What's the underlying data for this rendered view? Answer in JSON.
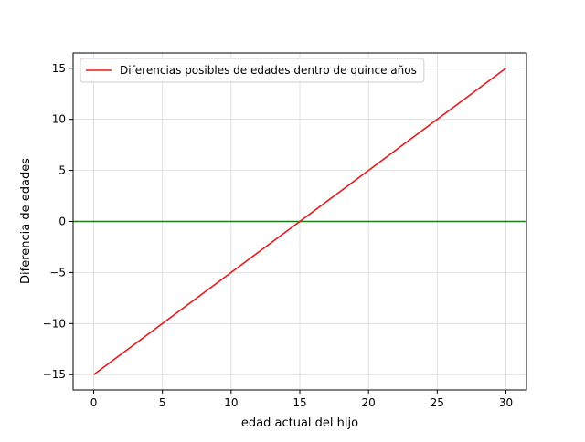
{
  "chart_data": {
    "type": "line",
    "xlabel": "edad actual del hijo",
    "ylabel": "Diferencia de edades",
    "xlim": [
      -1.5,
      31.5
    ],
    "ylim": [
      -16.5,
      16.5
    ],
    "xticks": [
      0,
      5,
      10,
      15,
      20,
      25,
      30
    ],
    "yticks": [
      -15,
      -10,
      -5,
      0,
      5,
      10,
      15
    ],
    "ytick_labels": [
      "−15",
      "−10",
      "−5",
      "0",
      "5",
      "10",
      "15"
    ],
    "grid": true,
    "legend_position": "upper-left",
    "series": [
      {
        "name": "Diferencias posibles de edades dentro de quince años",
        "color": "#e41a1c",
        "x": [
          0,
          30
        ],
        "y": [
          -15,
          15
        ]
      }
    ],
    "hlines": [
      {
        "y": 0,
        "color": "#1a7a1a"
      }
    ]
  }
}
